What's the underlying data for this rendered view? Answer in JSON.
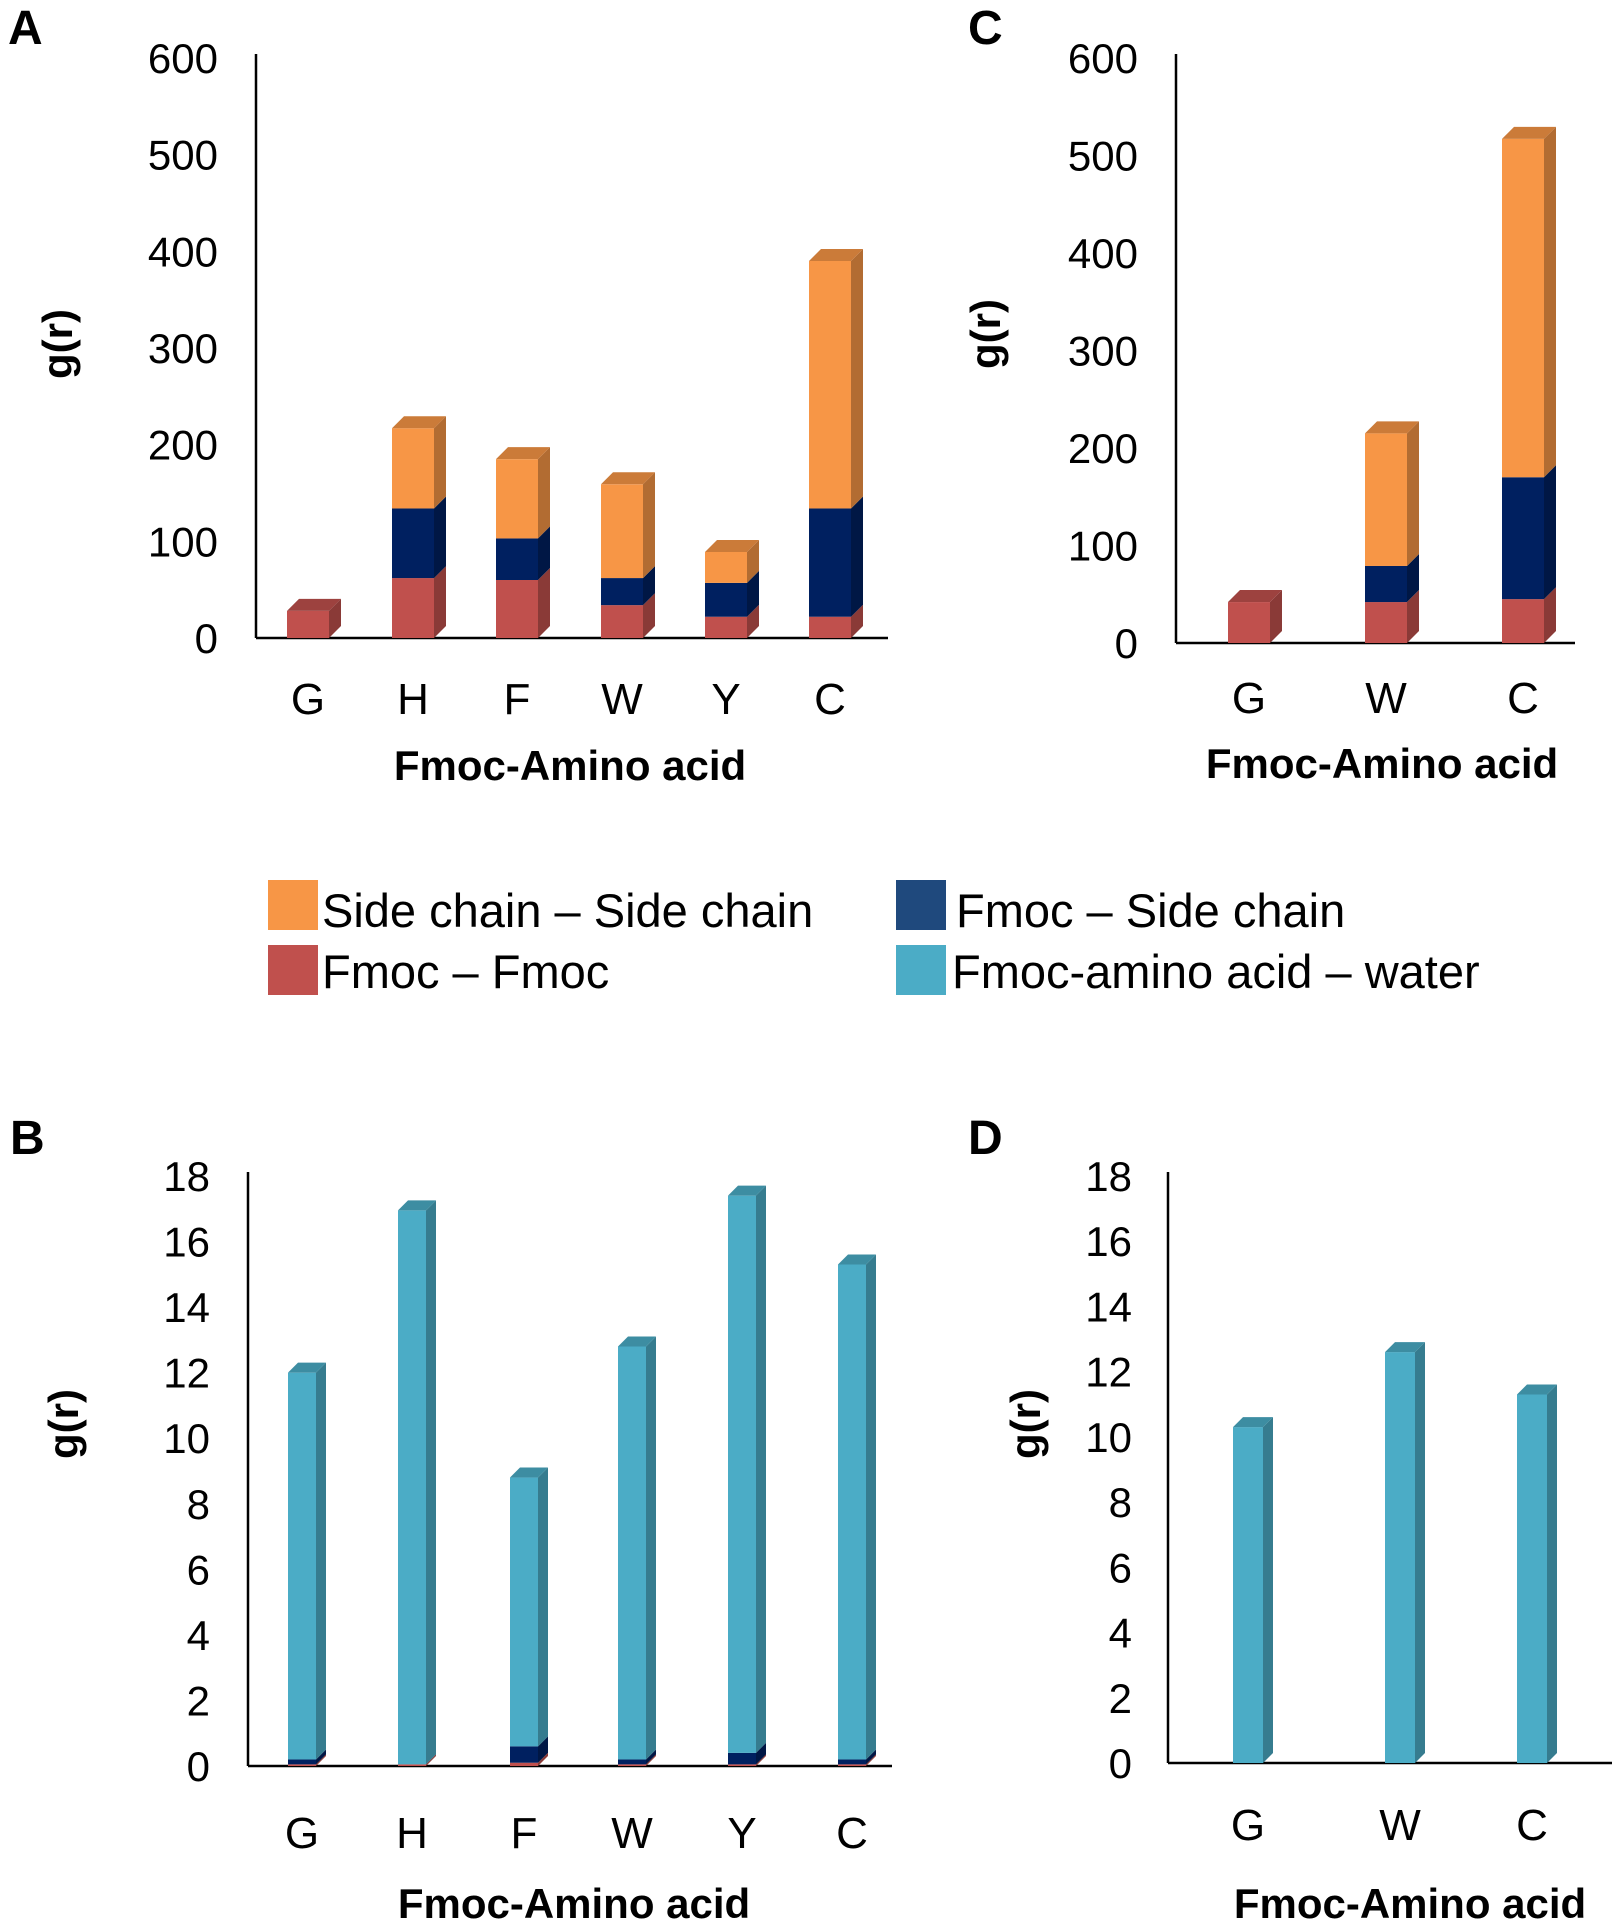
{
  "colors": {
    "side_side": "#F79646",
    "fmoc_side": "#002060",
    "fmoc_fmoc": "#C0504D",
    "water": "#4BACC6"
  },
  "legend": [
    {
      "label": "Side chain – Side chain",
      "color": "#F79646"
    },
    {
      "label": "Fmoc – Side chain",
      "color": "#1F497D"
    },
    {
      "label": "Fmoc – Fmoc",
      "color": "#C0504D"
    },
    {
      "label": "Fmoc-amino acid – water",
      "color": "#4BACC6"
    }
  ],
  "chart_data": [
    {
      "panel": "A",
      "type": "bar",
      "stacked": true,
      "categories": [
        "G",
        "H",
        "F",
        "W",
        "Y",
        "C"
      ],
      "series": [
        {
          "name": "Fmoc – Fmoc",
          "values": [
            28,
            62,
            60,
            34,
            22,
            22
          ]
        },
        {
          "name": "Fmoc – Side chain",
          "values": [
            0,
            72,
            43,
            28,
            35,
            112
          ]
        },
        {
          "name": "Side chain – Side chain",
          "values": [
            0,
            83,
            82,
            97,
            32,
            256
          ]
        }
      ],
      "xlabel": "Fmoc-Amino acid",
      "ylabel": "g(r)",
      "ylim": [
        0,
        600
      ],
      "yticks": [
        "0",
        "100",
        "200",
        "300",
        "400",
        "500",
        "600"
      ]
    },
    {
      "panel": "C",
      "type": "bar",
      "stacked": true,
      "categories": [
        "G",
        "W",
        "C"
      ],
      "series": [
        {
          "name": "Fmoc – Fmoc",
          "values": [
            42,
            42,
            45
          ]
        },
        {
          "name": "Fmoc – Side chain",
          "values": [
            0,
            37,
            125
          ]
        },
        {
          "name": "Side chain – Side chain",
          "values": [
            0,
            136,
            347
          ]
        }
      ],
      "xlabel": "Fmoc-Amino acid",
      "ylabel": "g(r)",
      "ylim": [
        0,
        600
      ],
      "yticks": [
        "0",
        "100",
        "200",
        "300",
        "400",
        "500",
        "600"
      ]
    },
    {
      "panel": "B",
      "type": "bar",
      "stacked": true,
      "categories": [
        "G",
        "H",
        "F",
        "W",
        "Y",
        "C"
      ],
      "series": [
        {
          "name": "Fmoc – Fmoc",
          "values": [
            0.05,
            0.05,
            0.1,
            0.05,
            0.05,
            0.05
          ]
        },
        {
          "name": "Fmoc – Side chain",
          "values": [
            0.15,
            0,
            0.5,
            0.15,
            0.35,
            0.15
          ]
        },
        {
          "name": "Fmoc-amino acid – water",
          "values": [
            11.8,
            16.9,
            8.2,
            12.6,
            17.0,
            15.1
          ]
        }
      ],
      "xlabel": "Fmoc-Amino acid",
      "ylabel": "g(r)",
      "ylim": [
        0,
        18
      ],
      "yticks": [
        "0",
        "2",
        "4",
        "6",
        "8",
        "10",
        "12",
        "14",
        "16",
        "18"
      ]
    },
    {
      "panel": "D",
      "type": "bar",
      "stacked": true,
      "categories": [
        "G",
        "W",
        "C"
      ],
      "series": [
        {
          "name": "Fmoc-amino acid – water",
          "values": [
            10.3,
            12.6,
            11.3
          ]
        }
      ],
      "xlabel": "Fmoc-Amino acid",
      "ylabel": "g(r)",
      "ylim": [
        0,
        18
      ],
      "yticks": [
        "0",
        "2",
        "4",
        "6",
        "8",
        "10",
        "12",
        "14",
        "16",
        "18"
      ]
    }
  ]
}
